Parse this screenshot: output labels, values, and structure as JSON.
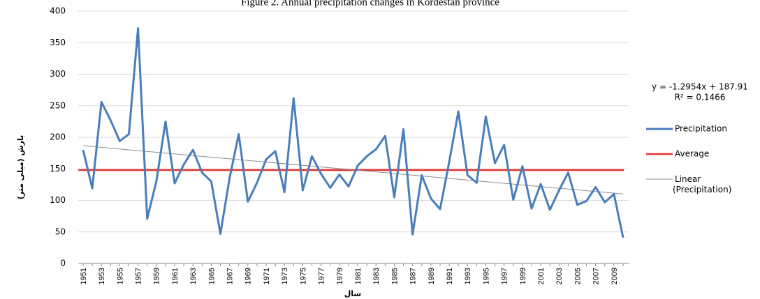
{
  "chart_data": {
    "type": "line",
    "title": "Figure 2. Annual precipitation changes in Kordestan province",
    "y_label": "بارش (میلی متر)",
    "x_label": "سال",
    "categories": [
      "1951",
      null,
      "1953",
      null,
      "1955",
      null,
      "1957",
      null,
      "1959",
      null,
      "1961",
      null,
      "1963",
      null,
      "1965",
      null,
      "1967",
      null,
      "1969",
      null,
      "1971",
      null,
      "1973",
      null,
      "1975",
      null,
      "1977",
      null,
      "1979",
      null,
      "1981",
      null,
      "1983",
      null,
      "1985",
      null,
      "1987",
      null,
      "1989",
      null,
      "1991",
      null,
      "1993",
      null,
      "1995",
      null,
      "1997",
      null,
      "1999",
      null,
      "2001",
      null,
      "2003",
      null,
      "2005",
      null,
      "2007",
      null,
      "2009",
      null
    ],
    "series": [
      {
        "name": "Precipitation",
        "color": "#4a7ebb",
        "values": [
          180,
          119,
          256,
          227,
          194,
          205,
          373,
          71,
          130,
          225,
          127,
          157,
          180,
          144,
          130,
          47,
          135,
          205,
          98,
          128,
          165,
          178,
          113,
          262,
          116,
          170,
          142,
          120,
          141,
          122,
          155,
          170,
          181,
          202,
          105,
          213,
          46,
          140,
          103,
          86,
          161,
          241,
          140,
          128,
          233,
          159,
          188,
          101,
          154,
          87,
          126,
          85,
          116,
          144,
          93,
          99,
          121,
          97,
          110,
          41
        ]
      }
    ],
    "average": {
      "name": "Average",
      "color": "#e8302f",
      "value": 148
    },
    "trendline": {
      "name": "Linear (Precipitation)",
      "color": "#8c8c8c",
      "start": 186.6,
      "end": 110.2,
      "equation": "y = -1.2954x + 187.91",
      "r2": "R² = 0.1466"
    },
    "ylim": [
      0,
      400
    ],
    "yticks": [
      0,
      50,
      100,
      150,
      200,
      250,
      300,
      350,
      400
    ],
    "grid": true
  }
}
